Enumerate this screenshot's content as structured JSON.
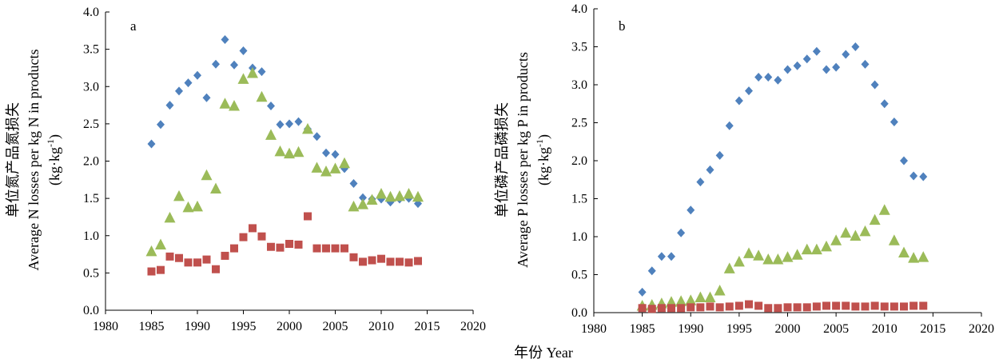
{
  "figure": {
    "shared_xlabel": "年份 Year"
  },
  "chart_data": [
    {
      "type": "scatter",
      "panel_label": "a",
      "title": "",
      "ylabel_line1": "单位氮产品氮损失",
      "ylabel_line2": "Average N losses per kg N in products",
      "ylabel_line3_main": "(kg·kg",
      "ylabel_line3_sup": "-1",
      "ylabel_line3_end": ")",
      "xlim": [
        1980,
        2020
      ],
      "ylim": [
        0,
        4
      ],
      "xticks": [
        1980,
        1985,
        1990,
        1995,
        2000,
        2005,
        2010,
        2015,
        2020
      ],
      "yticks": [
        "0.0",
        "0.5",
        "1.0",
        "1.5",
        "2.0",
        "2.5",
        "3.0",
        "3.5",
        "4.0"
      ],
      "grid": false,
      "legend": "none",
      "x": [
        1985,
        1986,
        1987,
        1988,
        1989,
        1990,
        1991,
        1992,
        1993,
        1994,
        1995,
        1996,
        1997,
        1998,
        1999,
        2000,
        2001,
        2002,
        2003,
        2004,
        2005,
        2006,
        2007,
        2008,
        2009,
        2010,
        2011,
        2012,
        2013,
        2014
      ],
      "series": [
        {
          "marker": "diamond",
          "color": "#4f81bd",
          "values": [
            2.23,
            2.49,
            2.75,
            2.94,
            3.05,
            3.15,
            2.85,
            3.3,
            3.63,
            3.29,
            3.48,
            3.25,
            3.2,
            2.74,
            2.49,
            2.5,
            2.53,
            2.43,
            2.33,
            2.11,
            2.09,
            1.9,
            1.7,
            1.51,
            1.49,
            1.49,
            1.45,
            1.49,
            1.5,
            1.43
          ]
        },
        {
          "marker": "triangle",
          "color": "#9bbb59",
          "values": [
            0.79,
            0.88,
            1.24,
            1.53,
            1.38,
            1.39,
            1.81,
            1.63,
            2.77,
            2.74,
            3.1,
            3.18,
            2.86,
            2.35,
            2.13,
            2.1,
            2.12,
            2.43,
            1.91,
            1.86,
            1.9,
            1.97,
            1.39,
            1.42,
            1.48,
            1.56,
            1.52,
            1.53,
            1.56,
            1.52
          ]
        },
        {
          "marker": "square",
          "color": "#c0504d",
          "values": [
            0.52,
            0.54,
            0.72,
            0.7,
            0.64,
            0.64,
            0.68,
            0.55,
            0.73,
            0.83,
            0.98,
            1.1,
            0.99,
            0.85,
            0.84,
            0.89,
            0.88,
            1.26,
            0.83,
            0.83,
            0.83,
            0.83,
            0.71,
            0.65,
            0.67,
            0.69,
            0.65,
            0.65,
            0.64,
            0.66
          ]
        }
      ]
    },
    {
      "type": "scatter",
      "panel_label": "b",
      "title": "",
      "ylabel_line1": "单位磷产品磷损失",
      "ylabel_line2": "Average P losses per kg P in products",
      "ylabel_line3_main": "(kg·kg",
      "ylabel_line3_sup": "-1",
      "ylabel_line3_end": ")",
      "xlim": [
        1980,
        2020
      ],
      "ylim": [
        0,
        4
      ],
      "xticks": [
        1980,
        1985,
        1990,
        1995,
        2000,
        2005,
        2010,
        2015,
        2020
      ],
      "yticks": [
        "0.0",
        "0.5",
        "1.0",
        "1.5",
        "2.0",
        "2.5",
        "3.0",
        "3.5",
        "4.0"
      ],
      "grid": false,
      "legend": "none",
      "x": [
        1985,
        1986,
        1987,
        1988,
        1989,
        1990,
        1991,
        1992,
        1993,
        1994,
        1995,
        1996,
        1997,
        1998,
        1999,
        2000,
        2001,
        2002,
        2003,
        2004,
        2005,
        2006,
        2007,
        2008,
        2009,
        2010,
        2011,
        2012,
        2013,
        2014
      ],
      "series": [
        {
          "marker": "diamond",
          "color": "#4f81bd",
          "values": [
            0.27,
            0.55,
            0.74,
            0.74,
            1.05,
            1.35,
            1.72,
            1.88,
            2.07,
            2.46,
            2.79,
            2.92,
            3.1,
            3.1,
            3.06,
            3.2,
            3.25,
            3.34,
            3.44,
            3.2,
            3.23,
            3.4,
            3.5,
            3.27,
            3.0,
            2.75,
            2.51,
            2.0,
            1.8,
            1.79
          ]
        },
        {
          "marker": "triangle",
          "color": "#9bbb59",
          "values": [
            0.09,
            0.1,
            0.12,
            0.14,
            0.15,
            0.16,
            0.2,
            0.2,
            0.29,
            0.58,
            0.67,
            0.78,
            0.75,
            0.7,
            0.7,
            0.73,
            0.76,
            0.83,
            0.83,
            0.87,
            0.95,
            1.05,
            1.01,
            1.07,
            1.22,
            1.35,
            0.95,
            0.79,
            0.72,
            0.73
          ]
        },
        {
          "marker": "square",
          "color": "#c0504d",
          "values": [
            0.06,
            0.05,
            0.06,
            0.06,
            0.06,
            0.07,
            0.07,
            0.08,
            0.07,
            0.08,
            0.09,
            0.11,
            0.09,
            0.06,
            0.06,
            0.07,
            0.07,
            0.07,
            0.08,
            0.09,
            0.09,
            0.09,
            0.08,
            0.08,
            0.09,
            0.08,
            0.08,
            0.08,
            0.09,
            0.09
          ]
        }
      ]
    }
  ]
}
